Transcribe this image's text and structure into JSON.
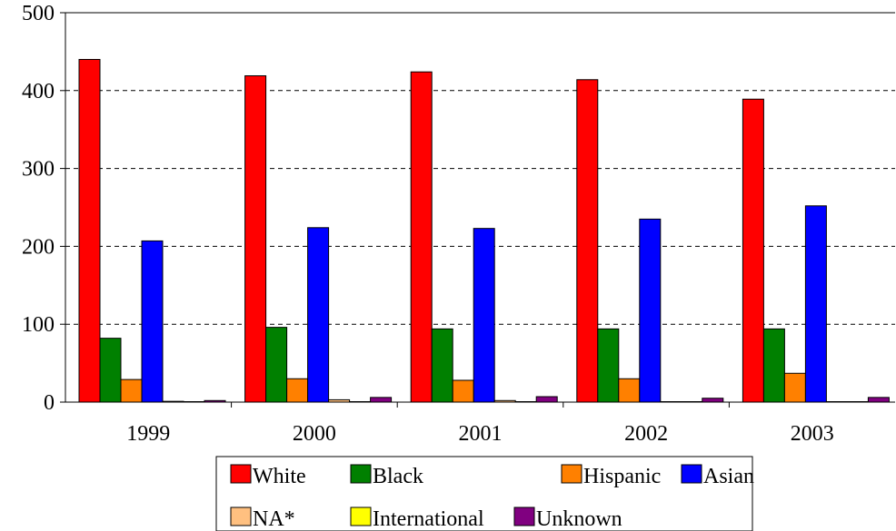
{
  "chart_data": {
    "type": "bar",
    "title": "",
    "xlabel": "",
    "ylabel": "",
    "ylim": [
      0,
      500
    ],
    "yticks": [
      0,
      100,
      200,
      300,
      400,
      500
    ],
    "grid": true,
    "legend_position": "bottom",
    "categories": [
      "1999",
      "2000",
      "2001",
      "2002",
      "2003"
    ],
    "series": [
      {
        "name": "White",
        "color": "#FF0000",
        "values": [
          440,
          419,
          424,
          414,
          389
        ]
      },
      {
        "name": "Black",
        "color": "#008000",
        "values": [
          82,
          96,
          94,
          94,
          94
        ]
      },
      {
        "name": "Hispanic",
        "color": "#FF8000",
        "values": [
          29,
          30,
          28,
          30,
          37
        ]
      },
      {
        "name": "Asian",
        "color": "#0000FF",
        "values": [
          207,
          224,
          223,
          235,
          252
        ]
      },
      {
        "name": "NA*",
        "color": "#FFC080",
        "values": [
          1,
          3,
          2,
          0,
          0
        ]
      },
      {
        "name": "International",
        "color": "#FFFF00",
        "values": [
          0,
          0,
          0,
          0,
          0
        ]
      },
      {
        "name": "Unknown",
        "color": "#800080",
        "values": [
          2,
          6,
          7,
          5,
          6
        ]
      }
    ]
  }
}
